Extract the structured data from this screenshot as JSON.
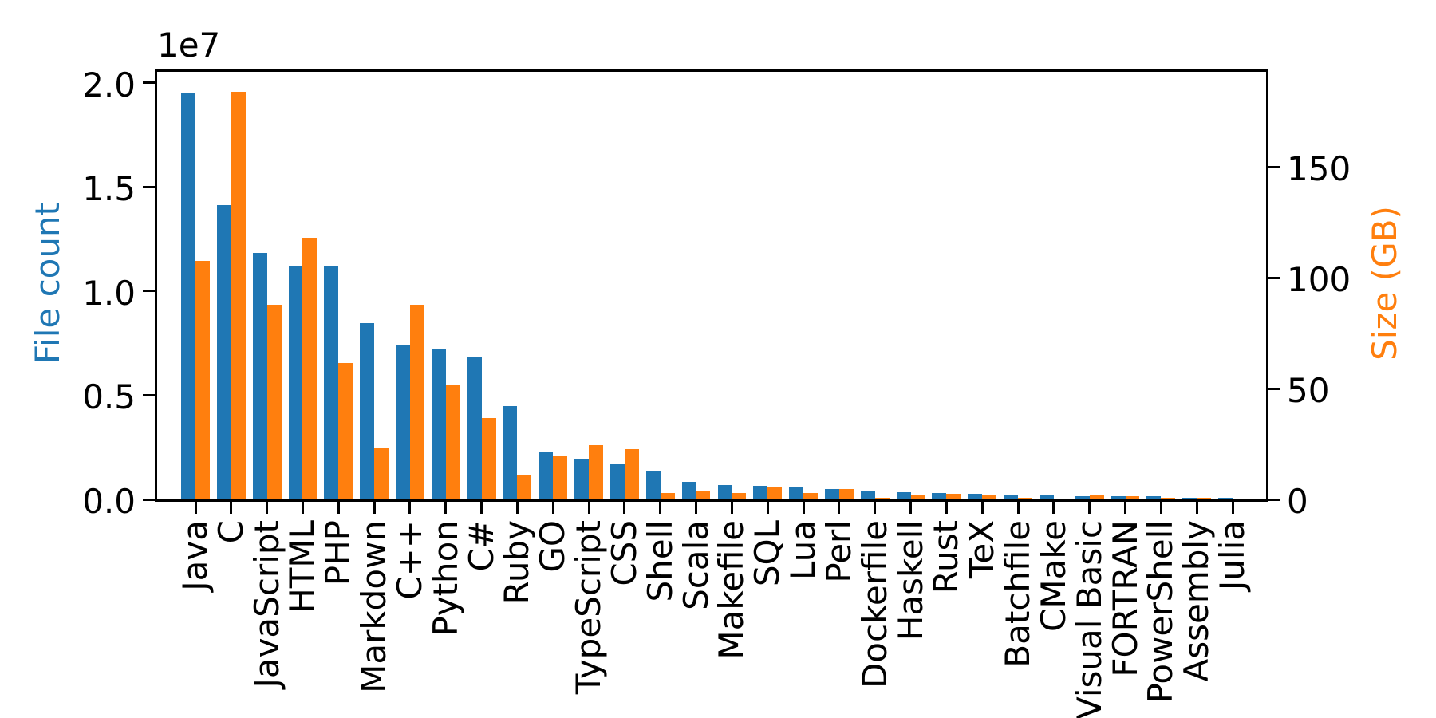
{
  "figure": {
    "background": "#ffffff"
  },
  "chart_data": {
    "type": "bar",
    "title": "",
    "grid": false,
    "legend_position": "none",
    "categories": [
      "Java",
      "C",
      "JavaScript",
      "HTML",
      "PHP",
      "Markdown",
      "C++",
      "Python",
      "C#",
      "Ruby",
      "GO",
      "TypeScript",
      "CSS",
      "Shell",
      "Scala",
      "Makefile",
      "SQL",
      "Lua",
      "Perl",
      "Dockerfile",
      "Haskell",
      "Rust",
      "TeX",
      "Batchfile",
      "CMake",
      "Visual Basic",
      "FORTRAN",
      "PowerShell",
      "Assembly",
      "Julia"
    ],
    "series": [
      {
        "name": "File count",
        "axis": "left",
        "color": "#1f77b4",
        "values": [
          19548190,
          14143113,
          11839883,
          11178557,
          11177610,
          8464626,
          7380520,
          7226626,
          6811652,
          4473331,
          2265436,
          1940406,
          1734406,
          1385648,
          835755,
          679430,
          656671,
          578554,
          497949,
          366505,
          340380,
          322431,
          251015,
          236945,
          175282,
          155652,
          142038,
          136846,
          82905,
          58317
        ]
      },
      {
        "name": "Size (GB)",
        "axis": "right",
        "color": "#ff7f0e",
        "values": [
          107.7,
          183.83,
          87.82,
          118.12,
          61.41,
          23.09,
          87.73,
          52.03,
          36.83,
          10.95,
          19.28,
          24.59,
          22.67,
          3.01,
          3.87,
          2.92,
          5.67,
          2.81,
          4.7,
          0.71,
          1.85,
          2.68,
          2.15,
          0.7,
          0.54,
          1.91,
          1.62,
          0.69,
          0.78,
          0.29
        ]
      }
    ],
    "left_axis": {
      "label": "File count",
      "color": "#1f77b4",
      "offset_text": "1e7",
      "tick_labels": [
        "0.0",
        "0.5",
        "1.0",
        "1.5",
        "2.0"
      ],
      "tick_values": [
        0,
        5000000,
        10000000,
        15000000,
        20000000
      ],
      "range": [
        0,
        20525000
      ]
    },
    "right_axis": {
      "label": "Size (GB)",
      "color": "#ff7f0e",
      "tick_labels": [
        "0",
        "50",
        "100",
        "150"
      ],
      "tick_values": [
        0,
        50,
        100,
        150
      ],
      "range": [
        0,
        193
      ]
    },
    "x_axis": {
      "label": "",
      "tick_label_rotation": 90
    }
  }
}
